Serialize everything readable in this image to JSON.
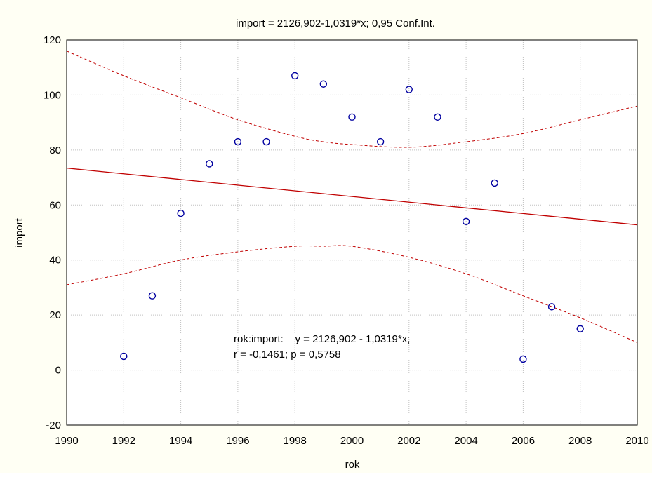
{
  "chart_data": {
    "type": "scatter",
    "title": "import = 2126,902-1,0319*x; 0,95 Conf.Int.",
    "xlabel": "rok",
    "ylabel": "import",
    "xlim": [
      1990,
      2010
    ],
    "ylim": [
      -20,
      120
    ],
    "xticks": [
      1990,
      1992,
      1994,
      1996,
      1998,
      2000,
      2002,
      2004,
      2006,
      2008,
      2010
    ],
    "yticks": [
      -20,
      0,
      20,
      40,
      60,
      80,
      100,
      120
    ],
    "grid": true,
    "series": [
      {
        "marker": "circle",
        "x": [
          1992,
          1993,
          1994,
          1995,
          1996,
          1997,
          1998,
          1999,
          2000,
          2001,
          2002,
          2003,
          2004,
          2005,
          2006,
          2007,
          2008
        ],
        "y": [
          5,
          27,
          57,
          75,
          83,
          83,
          107,
          104,
          92,
          83,
          102,
          92,
          54,
          68,
          4,
          23,
          15
        ]
      }
    ],
    "regression": {
      "intercept": 2126.902,
      "slope": -1.0319
    },
    "confidence_band": {
      "level": 0.95,
      "x": [
        1990,
        1992,
        1994,
        1996,
        1998,
        1999,
        2000,
        2002,
        2004,
        2006,
        2008,
        2010
      ],
      "upper": [
        116,
        107,
        99,
        91,
        85,
        83,
        82,
        81,
        83,
        86,
        91,
        96
      ],
      "lower": [
        31,
        35,
        40,
        43,
        45,
        45,
        45,
        41,
        35,
        27,
        19,
        10
      ]
    },
    "annotation": {
      "line1": "rok:import:    y = 2126,902 - 1,0319*x;",
      "line2": "r = -0,1461; p = 0,5758"
    },
    "colors": {
      "background": "#fffff4",
      "plot_area": "#ffffff",
      "grid": "#c0c0c0",
      "regression": "#c00000",
      "band": "#c00000",
      "points": "#0000a0"
    }
  }
}
